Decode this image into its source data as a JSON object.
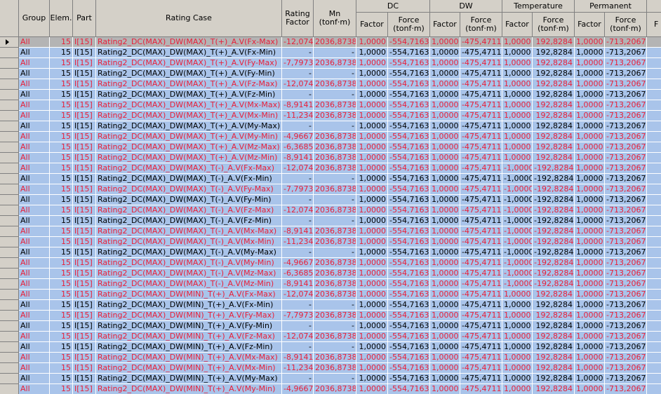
{
  "headers": {
    "group": "Group",
    "elem": "Elem.",
    "part": "Part",
    "rating_case": "Rating Case",
    "rating_factor": "Rating Factor",
    "mn": "Mn (tonf·m)",
    "dc": "DC",
    "dw": "DW",
    "temperature": "Temperature",
    "permanent": "Permanent",
    "factor": "Factor",
    "force": "Force (tonf·m)",
    "last": "F"
  },
  "rows": [
    {
      "group": "All",
      "elem": "15",
      "part": "I[15]",
      "case": "Rating2_DC(MAX)_DW(MAX)_T(+)_A.V(Fx-Max)",
      "rf": "-12,074",
      "mn": "2036,8738",
      "dcf": "1,0000",
      "dcv": "-554,7163",
      "dwf": "1,0000",
      "dwv": "-475,4711",
      "tf": "1,0000",
      "tv": "192,8284",
      "pf": "1,0000",
      "pv": "-713,2067",
      "color": "red"
    },
    {
      "group": "All",
      "elem": "15",
      "part": "I[15]",
      "case": "Rating2_DC(MAX)_DW(MAX)_T(+)_A.V(Fx-Min)",
      "rf": "-",
      "mn": "-",
      "dcf": "1,0000",
      "dcv": "-554,7163",
      "dwf": "1,0000",
      "dwv": "-475,4711",
      "tf": "1,0000",
      "tv": "192,8284",
      "pf": "1,0000",
      "pv": "-713,2067",
      "color": "black"
    },
    {
      "group": "All",
      "elem": "15",
      "part": "I[15]",
      "case": "Rating2_DC(MAX)_DW(MAX)_T(+)_A.V(Fy-Max)",
      "rf": "-7,7973",
      "mn": "2036,8738",
      "dcf": "1,0000",
      "dcv": "-554,7163",
      "dwf": "1,0000",
      "dwv": "-475,4711",
      "tf": "1,0000",
      "tv": "192,8284",
      "pf": "1,0000",
      "pv": "-713,2067",
      "color": "red"
    },
    {
      "group": "All",
      "elem": "15",
      "part": "I[15]",
      "case": "Rating2_DC(MAX)_DW(MAX)_T(+)_A.V(Fy-Min)",
      "rf": "-",
      "mn": "-",
      "dcf": "1,0000",
      "dcv": "-554,7163",
      "dwf": "1,0000",
      "dwv": "-475,4711",
      "tf": "1,0000",
      "tv": "192,8284",
      "pf": "1,0000",
      "pv": "-713,2067",
      "color": "black"
    },
    {
      "group": "All",
      "elem": "15",
      "part": "I[15]",
      "case": "Rating2_DC(MAX)_DW(MAX)_T(+)_A.V(Fz-Max)",
      "rf": "-12,074",
      "mn": "2036,8738",
      "dcf": "1,0000",
      "dcv": "-554,7163",
      "dwf": "1,0000",
      "dwv": "-475,4711",
      "tf": "1,0000",
      "tv": "192,8284",
      "pf": "1,0000",
      "pv": "-713,2067",
      "color": "red"
    },
    {
      "group": "All",
      "elem": "15",
      "part": "I[15]",
      "case": "Rating2_DC(MAX)_DW(MAX)_T(+)_A.V(Fz-Min)",
      "rf": "-",
      "mn": "-",
      "dcf": "1,0000",
      "dcv": "-554,7163",
      "dwf": "1,0000",
      "dwv": "-475,4711",
      "tf": "1,0000",
      "tv": "192,8284",
      "pf": "1,0000",
      "pv": "-713,2067",
      "color": "black"
    },
    {
      "group": "All",
      "elem": "15",
      "part": "I[15]",
      "case": "Rating2_DC(MAX)_DW(MAX)_T(+)_A.V(Mx-Max)",
      "rf": "-8,9141",
      "mn": "2036,8738",
      "dcf": "1,0000",
      "dcv": "-554,7163",
      "dwf": "1,0000",
      "dwv": "-475,4711",
      "tf": "1,0000",
      "tv": "192,8284",
      "pf": "1,0000",
      "pv": "-713,2067",
      "color": "red"
    },
    {
      "group": "All",
      "elem": "15",
      "part": "I[15]",
      "case": "Rating2_DC(MAX)_DW(MAX)_T(+)_A.V(Mx-Min)",
      "rf": "-11,234",
      "mn": "2036,8738",
      "dcf": "1,0000",
      "dcv": "-554,7163",
      "dwf": "1,0000",
      "dwv": "-475,4711",
      "tf": "1,0000",
      "tv": "192,8284",
      "pf": "1,0000",
      "pv": "-713,2067",
      "color": "red"
    },
    {
      "group": "All",
      "elem": "15",
      "part": "I[15]",
      "case": "Rating2_DC(MAX)_DW(MAX)_T(+)_A.V(My-Max)",
      "rf": "-",
      "mn": "-",
      "dcf": "1,0000",
      "dcv": "-554,7163",
      "dwf": "1,0000",
      "dwv": "-475,4711",
      "tf": "1,0000",
      "tv": "192,8284",
      "pf": "1,0000",
      "pv": "-713,2067",
      "color": "black"
    },
    {
      "group": "All",
      "elem": "15",
      "part": "I[15]",
      "case": "Rating2_DC(MAX)_DW(MAX)_T(+)_A.V(My-Min)",
      "rf": "-4,9667",
      "mn": "2036,8738",
      "dcf": "1,0000",
      "dcv": "-554,7163",
      "dwf": "1,0000",
      "dwv": "-475,4711",
      "tf": "1,0000",
      "tv": "192,8284",
      "pf": "1,0000",
      "pv": "-713,2067",
      "color": "red"
    },
    {
      "group": "All",
      "elem": "15",
      "part": "I[15]",
      "case": "Rating2_DC(MAX)_DW(MAX)_T(+)_A.V(Mz-Max)",
      "rf": "-6,3685",
      "mn": "2036,8738",
      "dcf": "1,0000",
      "dcv": "-554,7163",
      "dwf": "1,0000",
      "dwv": "-475,4711",
      "tf": "1,0000",
      "tv": "192,8284",
      "pf": "1,0000",
      "pv": "-713,2067",
      "color": "red"
    },
    {
      "group": "All",
      "elem": "15",
      "part": "I[15]",
      "case": "Rating2_DC(MAX)_DW(MAX)_T(+)_A.V(Mz-Min)",
      "rf": "-8,9141",
      "mn": "2036,8738",
      "dcf": "1,0000",
      "dcv": "-554,7163",
      "dwf": "1,0000",
      "dwv": "-475,4711",
      "tf": "1,0000",
      "tv": "192,8284",
      "pf": "1,0000",
      "pv": "-713,2067",
      "color": "red"
    },
    {
      "group": "All",
      "elem": "15",
      "part": "I[15]",
      "case": "Rating2_DC(MAX)_DW(MAX)_T(-)_A.V(Fx-Max)",
      "rf": "-12,074",
      "mn": "2036,8738",
      "dcf": "1,0000",
      "dcv": "-554,7163",
      "dwf": "1,0000",
      "dwv": "-475,4711",
      "tf": "-1,0000",
      "tv": "-192,8284",
      "pf": "1,0000",
      "pv": "-713,2067",
      "color": "red"
    },
    {
      "group": "All",
      "elem": "15",
      "part": "I[15]",
      "case": "Rating2_DC(MAX)_DW(MAX)_T(-)_A.V(Fx-Min)",
      "rf": "-",
      "mn": "-",
      "dcf": "1,0000",
      "dcv": "-554,7163",
      "dwf": "1,0000",
      "dwv": "-475,4711",
      "tf": "-1,0000",
      "tv": "-192,8284",
      "pf": "1,0000",
      "pv": "-713,2067",
      "color": "black"
    },
    {
      "group": "All",
      "elem": "15",
      "part": "I[15]",
      "case": "Rating2_DC(MAX)_DW(MAX)_T(-)_A.V(Fy-Max)",
      "rf": "-7,7973",
      "mn": "2036,8738",
      "dcf": "1,0000",
      "dcv": "-554,7163",
      "dwf": "1,0000",
      "dwv": "-475,4711",
      "tf": "-1,0000",
      "tv": "-192,8284",
      "pf": "1,0000",
      "pv": "-713,2067",
      "color": "red"
    },
    {
      "group": "All",
      "elem": "15",
      "part": "I[15]",
      "case": "Rating2_DC(MAX)_DW(MAX)_T(-)_A.V(Fy-Min)",
      "rf": "-",
      "mn": "-",
      "dcf": "1,0000",
      "dcv": "-554,7163",
      "dwf": "1,0000",
      "dwv": "-475,4711",
      "tf": "-1,0000",
      "tv": "-192,8284",
      "pf": "1,0000",
      "pv": "-713,2067",
      "color": "black"
    },
    {
      "group": "All",
      "elem": "15",
      "part": "I[15]",
      "case": "Rating2_DC(MAX)_DW(MAX)_T(-)_A.V(Fz-Max)",
      "rf": "-12,074",
      "mn": "2036,8738",
      "dcf": "1,0000",
      "dcv": "-554,7163",
      "dwf": "1,0000",
      "dwv": "-475,4711",
      "tf": "-1,0000",
      "tv": "-192,8284",
      "pf": "1,0000",
      "pv": "-713,2067",
      "color": "red"
    },
    {
      "group": "All",
      "elem": "15",
      "part": "I[15]",
      "case": "Rating2_DC(MAX)_DW(MAX)_T(-)_A.V(Fz-Min)",
      "rf": "-",
      "mn": "-",
      "dcf": "1,0000",
      "dcv": "-554,7163",
      "dwf": "1,0000",
      "dwv": "-475,4711",
      "tf": "-1,0000",
      "tv": "-192,8284",
      "pf": "1,0000",
      "pv": "-713,2067",
      "color": "black"
    },
    {
      "group": "All",
      "elem": "15",
      "part": "I[15]",
      "case": "Rating2_DC(MAX)_DW(MAX)_T(-)_A.V(Mx-Max)",
      "rf": "-8,9141",
      "mn": "2036,8738",
      "dcf": "1,0000",
      "dcv": "-554,7163",
      "dwf": "1,0000",
      "dwv": "-475,4711",
      "tf": "-1,0000",
      "tv": "-192,8284",
      "pf": "1,0000",
      "pv": "-713,2067",
      "color": "red"
    },
    {
      "group": "All",
      "elem": "15",
      "part": "I[15]",
      "case": "Rating2_DC(MAX)_DW(MAX)_T(-)_A.V(Mx-Min)",
      "rf": "-11,234",
      "mn": "2036,8738",
      "dcf": "1,0000",
      "dcv": "-554,7163",
      "dwf": "1,0000",
      "dwv": "-475,4711",
      "tf": "-1,0000",
      "tv": "-192,8284",
      "pf": "1,0000",
      "pv": "-713,2067",
      "color": "red"
    },
    {
      "group": "All",
      "elem": "15",
      "part": "I[15]",
      "case": "Rating2_DC(MAX)_DW(MAX)_T(-)_A.V(My-Max)",
      "rf": "-",
      "mn": "-",
      "dcf": "1,0000",
      "dcv": "-554,7163",
      "dwf": "1,0000",
      "dwv": "-475,4711",
      "tf": "-1,0000",
      "tv": "-192,8284",
      "pf": "1,0000",
      "pv": "-713,2067",
      "color": "black"
    },
    {
      "group": "All",
      "elem": "15",
      "part": "I[15]",
      "case": "Rating2_DC(MAX)_DW(MAX)_T(-)_A.V(My-Min)",
      "rf": "-4,9667",
      "mn": "2036,8738",
      "dcf": "1,0000",
      "dcv": "-554,7163",
      "dwf": "1,0000",
      "dwv": "-475,4711",
      "tf": "-1,0000",
      "tv": "-192,8284",
      "pf": "1,0000",
      "pv": "-713,2067",
      "color": "red"
    },
    {
      "group": "All",
      "elem": "15",
      "part": "I[15]",
      "case": "Rating2_DC(MAX)_DW(MAX)_T(-)_A.V(Mz-Max)",
      "rf": "-6,3685",
      "mn": "2036,8738",
      "dcf": "1,0000",
      "dcv": "-554,7163",
      "dwf": "1,0000",
      "dwv": "-475,4711",
      "tf": "-1,0000",
      "tv": "-192,8284",
      "pf": "1,0000",
      "pv": "-713,2067",
      "color": "red"
    },
    {
      "group": "All",
      "elem": "15",
      "part": "I[15]",
      "case": "Rating2_DC(MAX)_DW(MAX)_T(-)_A.V(Mz-Min)",
      "rf": "-8,9141",
      "mn": "2036,8738",
      "dcf": "1,0000",
      "dcv": "-554,7163",
      "dwf": "1,0000",
      "dwv": "-475,4711",
      "tf": "-1,0000",
      "tv": "-192,8284",
      "pf": "1,0000",
      "pv": "-713,2067",
      "color": "red"
    },
    {
      "group": "All",
      "elem": "15",
      "part": "I[15]",
      "case": "Rating2_DC(MAX)_DW(MIN)_T(+)_A.V(Fx-Max)",
      "rf": "-12,074",
      "mn": "2036,8738",
      "dcf": "1,0000",
      "dcv": "-554,7163",
      "dwf": "1,0000",
      "dwv": "-475,4711",
      "tf": "1,0000",
      "tv": "192,8284",
      "pf": "1,0000",
      "pv": "-713,2067",
      "color": "red"
    },
    {
      "group": "All",
      "elem": "15",
      "part": "I[15]",
      "case": "Rating2_DC(MAX)_DW(MIN)_T(+)_A.V(Fx-Min)",
      "rf": "-",
      "mn": "-",
      "dcf": "1,0000",
      "dcv": "-554,7163",
      "dwf": "1,0000",
      "dwv": "-475,4711",
      "tf": "1,0000",
      "tv": "192,8284",
      "pf": "1,0000",
      "pv": "-713,2067",
      "color": "black"
    },
    {
      "group": "All",
      "elem": "15",
      "part": "I[15]",
      "case": "Rating2_DC(MAX)_DW(MIN)_T(+)_A.V(Fy-Max)",
      "rf": "-7,7973",
      "mn": "2036,8738",
      "dcf": "1,0000",
      "dcv": "-554,7163",
      "dwf": "1,0000",
      "dwv": "-475,4711",
      "tf": "1,0000",
      "tv": "192,8284",
      "pf": "1,0000",
      "pv": "-713,2067",
      "color": "red"
    },
    {
      "group": "All",
      "elem": "15",
      "part": "I[15]",
      "case": "Rating2_DC(MAX)_DW(MIN)_T(+)_A.V(Fy-Min)",
      "rf": "-",
      "mn": "-",
      "dcf": "1,0000",
      "dcv": "-554,7163",
      "dwf": "1,0000",
      "dwv": "-475,4711",
      "tf": "1,0000",
      "tv": "192,8284",
      "pf": "1,0000",
      "pv": "-713,2067",
      "color": "black"
    },
    {
      "group": "All",
      "elem": "15",
      "part": "I[15]",
      "case": "Rating2_DC(MAX)_DW(MIN)_T(+)_A.V(Fz-Max)",
      "rf": "-12,074",
      "mn": "2036,8738",
      "dcf": "1,0000",
      "dcv": "-554,7163",
      "dwf": "1,0000",
      "dwv": "-475,4711",
      "tf": "1,0000",
      "tv": "192,8284",
      "pf": "1,0000",
      "pv": "-713,2067",
      "color": "red"
    },
    {
      "group": "All",
      "elem": "15",
      "part": "I[15]",
      "case": "Rating2_DC(MAX)_DW(MIN)_T(+)_A.V(Fz-Min)",
      "rf": "-",
      "mn": "-",
      "dcf": "1,0000",
      "dcv": "-554,7163",
      "dwf": "1,0000",
      "dwv": "-475,4711",
      "tf": "1,0000",
      "tv": "192,8284",
      "pf": "1,0000",
      "pv": "-713,2067",
      "color": "black"
    },
    {
      "group": "All",
      "elem": "15",
      "part": "I[15]",
      "case": "Rating2_DC(MAX)_DW(MIN)_T(+)_A.V(Mx-Max)",
      "rf": "-8,9141",
      "mn": "2036,8738",
      "dcf": "1,0000",
      "dcv": "-554,7163",
      "dwf": "1,0000",
      "dwv": "-475,4711",
      "tf": "1,0000",
      "tv": "192,8284",
      "pf": "1,0000",
      "pv": "-713,2067",
      "color": "red"
    },
    {
      "group": "All",
      "elem": "15",
      "part": "I[15]",
      "case": "Rating2_DC(MAX)_DW(MIN)_T(+)_A.V(Mx-Min)",
      "rf": "-11,234",
      "mn": "2036,8738",
      "dcf": "1,0000",
      "dcv": "-554,7163",
      "dwf": "1,0000",
      "dwv": "-475,4711",
      "tf": "1,0000",
      "tv": "192,8284",
      "pf": "1,0000",
      "pv": "-713,2067",
      "color": "red"
    },
    {
      "group": "All",
      "elem": "15",
      "part": "I[15]",
      "case": "Rating2_DC(MAX)_DW(MIN)_T(+)_A.V(My-Max)",
      "rf": "-",
      "mn": "-",
      "dcf": "1,0000",
      "dcv": "-554,7163",
      "dwf": "1,0000",
      "dwv": "-475,4711",
      "tf": "1,0000",
      "tv": "192,8284",
      "pf": "1,0000",
      "pv": "-713,2067",
      "color": "black"
    },
    {
      "group": "All",
      "elem": "15",
      "part": "I[15]",
      "case": "Rating2_DC(MAX)_DW(MIN)_T(+)_A.V(My-Min)",
      "rf": "-4,9667",
      "mn": "2036,8738",
      "dcf": "1,0000",
      "dcv": "-554,7163",
      "dwf": "1,0000",
      "dwv": "-475,4711",
      "tf": "1,0000",
      "tv": "192,8284",
      "pf": "1,0000",
      "pv": "-713,2067",
      "color": "red"
    }
  ],
  "colors": {
    "row_bg": "#a9c4ea",
    "selected_bg": "#b4b4b4",
    "header_bg": "#d4d0c8",
    "red_text": "#e8203a",
    "black_text": "#000000"
  },
  "selected_row": 0
}
